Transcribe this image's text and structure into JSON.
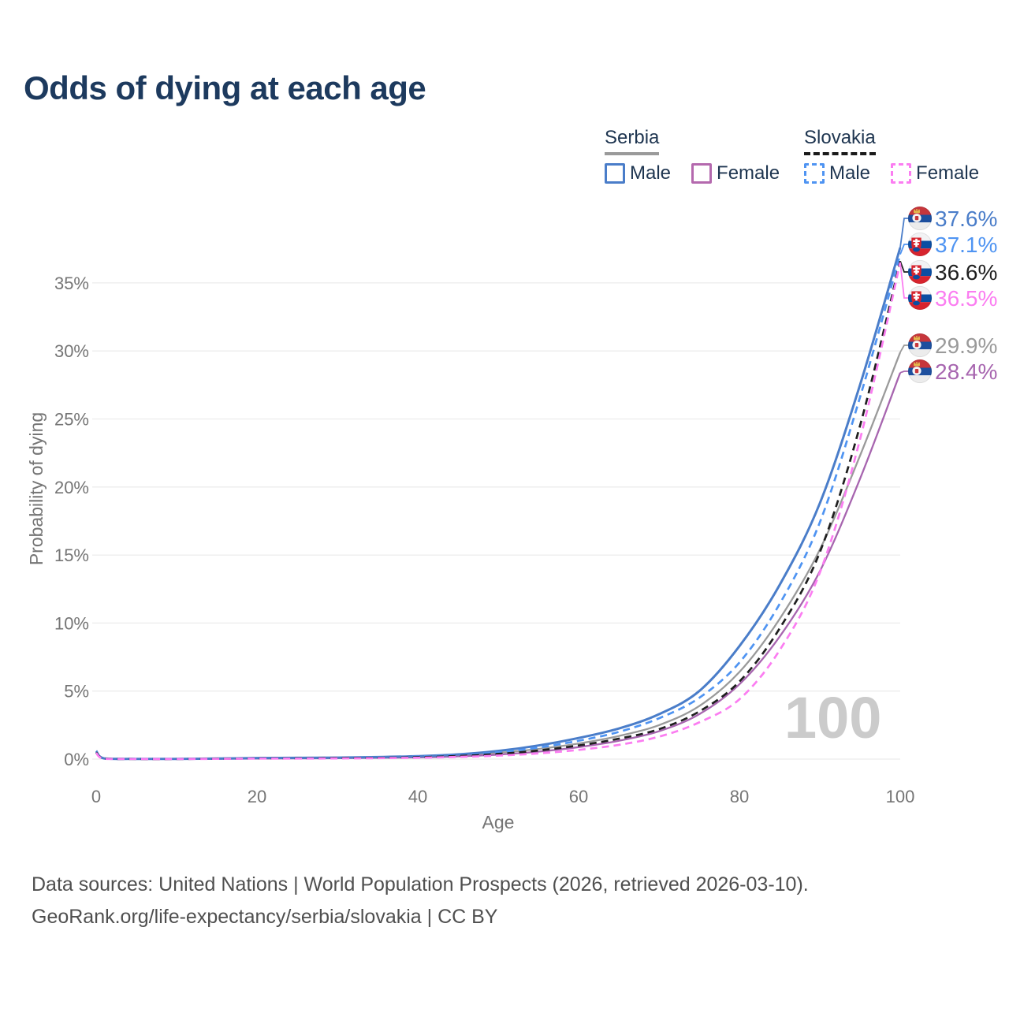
{
  "title": "Odds of dying at each age",
  "watermark": "100",
  "legend": {
    "groups": [
      {
        "name": "Serbia",
        "style": "solid",
        "underline_color": "#9a9a9a",
        "items": [
          {
            "label": "Male",
            "color": "#4a7dc9"
          },
          {
            "label": "Female",
            "color": "#b469ae"
          }
        ]
      },
      {
        "name": "Slovakia",
        "style": "dashed",
        "underline_color": "#1a1a1a",
        "items": [
          {
            "label": "Male",
            "color": "#4f94f2"
          },
          {
            "label": "Female",
            "color": "#fb7df1"
          }
        ]
      }
    ]
  },
  "footer": {
    "line1": "Data sources: United Nations | World Population Prospects (2026, retrieved 2026-03-10).",
    "line2": "GeoRank.org/life-expectancy/serbia/slovakia | CC BY"
  },
  "chart_data": {
    "type": "line",
    "title": "Odds of dying at each age",
    "xlabel": "Age",
    "ylabel": "Probability of dying",
    "xlim": [
      0,
      102
    ],
    "ylim": [
      0,
      40.2
    ],
    "grid": "horizontal",
    "legend_position": "top-right",
    "x_ticks": [
      {
        "value": 0,
        "label": "0"
      },
      {
        "value": 20,
        "label": "20"
      },
      {
        "value": 40,
        "label": "40"
      },
      {
        "value": 60,
        "label": "60"
      },
      {
        "value": 80,
        "label": "80"
      },
      {
        "value": 100,
        "label": "100"
      }
    ],
    "y_ticks": [
      {
        "value": 0,
        "label": "0%"
      },
      {
        "value": 5,
        "label": "5%"
      },
      {
        "value": 10,
        "label": "10%"
      },
      {
        "value": 15,
        "label": "15%"
      },
      {
        "value": 20,
        "label": "20%"
      },
      {
        "value": 25,
        "label": "25%"
      },
      {
        "value": 30,
        "label": "30%"
      },
      {
        "value": 35,
        "label": "35%"
      }
    ],
    "x": [
      0,
      1,
      5,
      10,
      15,
      20,
      25,
      30,
      35,
      40,
      45,
      50,
      55,
      60,
      65,
      70,
      75,
      80,
      85,
      90,
      95,
      100
    ],
    "series": [
      {
        "name": "Serbia Male",
        "country": "Serbia",
        "sex": "Male",
        "color": "#4a7dc9",
        "dash": "solid",
        "end_label": "37.6%",
        "end_value": 37.6,
        "values": [
          0.6,
          0.05,
          0.02,
          0.02,
          0.04,
          0.08,
          0.09,
          0.11,
          0.15,
          0.22,
          0.35,
          0.6,
          1.0,
          1.55,
          2.25,
          3.3,
          5.0,
          8.3,
          12.8,
          18.8,
          27.5,
          37.6
        ]
      },
      {
        "name": "Slovakia Male",
        "country": "Slovakia",
        "sex": "Male",
        "color": "#4f94f2",
        "dash": "dashed",
        "end_label": "37.1%",
        "end_value": 37.1,
        "values": [
          0.55,
          0.04,
          0.02,
          0.02,
          0.04,
          0.07,
          0.08,
          0.1,
          0.13,
          0.19,
          0.3,
          0.5,
          0.85,
          1.35,
          2.0,
          3.0,
          4.5,
          7.1,
          11.4,
          17.4,
          26.6,
          37.1
        ]
      },
      {
        "name": "Slovakia Total",
        "country": "Slovakia",
        "sex": "Total",
        "color": "#1f1f1f",
        "dash": "dashed",
        "end_label": "36.6%",
        "end_value": 36.6,
        "values": [
          0.5,
          0.04,
          0.01,
          0.01,
          0.03,
          0.05,
          0.06,
          0.08,
          0.1,
          0.14,
          0.23,
          0.38,
          0.63,
          1.0,
          1.5,
          2.2,
          3.5,
          5.7,
          9.6,
          15.2,
          24.5,
          36.6
        ]
      },
      {
        "name": "Slovakia Female",
        "country": "Slovakia",
        "sex": "Female",
        "color": "#fb7df1",
        "dash": "dashed",
        "end_label": "36.5%",
        "end_value": 36.5,
        "values": [
          0.45,
          0.03,
          0.01,
          0.01,
          0.02,
          0.04,
          0.04,
          0.05,
          0.07,
          0.1,
          0.16,
          0.26,
          0.42,
          0.68,
          1.05,
          1.65,
          2.7,
          4.4,
          8.0,
          13.7,
          23.5,
          36.5
        ]
      },
      {
        "name": "Serbia Total",
        "country": "Serbia",
        "sex": "Total",
        "color": "#9a9a9a",
        "dash": "solid",
        "end_label": "29.9%",
        "end_value": 29.9,
        "values": [
          0.55,
          0.04,
          0.02,
          0.02,
          0.03,
          0.06,
          0.07,
          0.09,
          0.12,
          0.17,
          0.27,
          0.46,
          0.75,
          1.15,
          1.7,
          2.5,
          3.9,
          6.4,
          10.3,
          15.4,
          22.3,
          29.9
        ]
      },
      {
        "name": "Serbia Female",
        "country": "Serbia",
        "sex": "Female",
        "color": "#a765af",
        "dash": "solid",
        "end_label": "28.4%",
        "end_value": 28.4,
        "values": [
          0.5,
          0.04,
          0.01,
          0.01,
          0.02,
          0.04,
          0.05,
          0.07,
          0.09,
          0.12,
          0.2,
          0.33,
          0.55,
          0.88,
          1.35,
          2.05,
          3.3,
          5.5,
          9.0,
          13.8,
          20.6,
          28.4
        ]
      }
    ]
  }
}
